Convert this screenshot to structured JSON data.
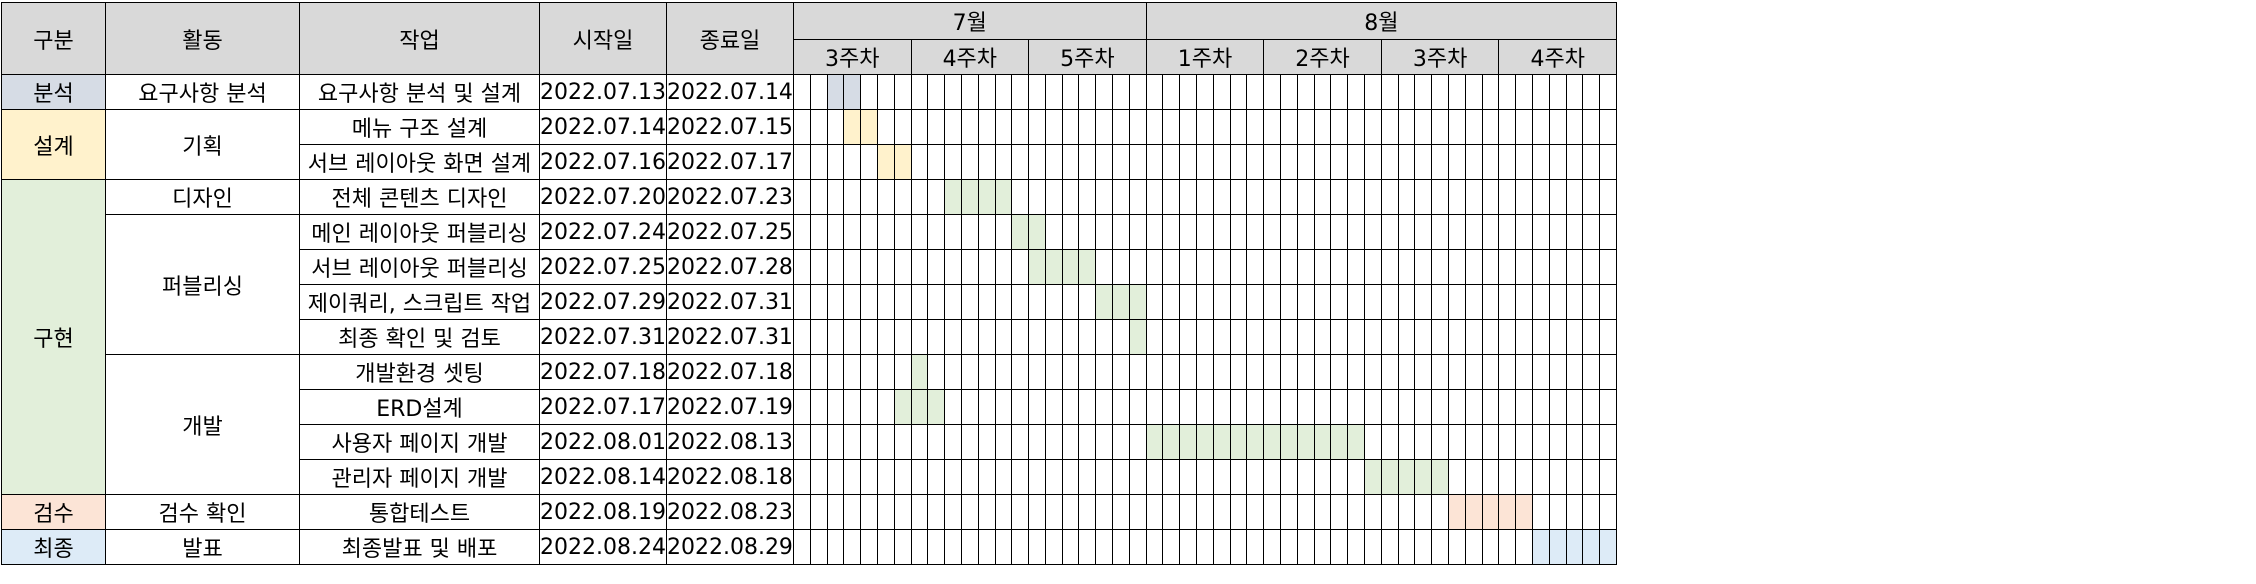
{
  "headers": {
    "category": "구분",
    "activity": "활동",
    "task": "작업",
    "start": "시작일",
    "end": "종료일"
  },
  "months": [
    {
      "label": "7월",
      "weeks": [
        "3주차",
        "4주차",
        "5주차"
      ],
      "days": 21
    },
    {
      "label": "8월",
      "weeks": [
        "1주차",
        "2주차",
        "3주차",
        "4주차"
      ],
      "days": 28
    }
  ],
  "timeline_start": "2022-07-11",
  "colors": {
    "header_bg": "#d9d9d9",
    "분석": "#d6dce5",
    "설계": "#fff2cc",
    "구현": "#e2efda",
    "검수": "#fce4d6",
    "최종": "#ddebf7"
  },
  "rows": [
    {
      "category": "분석",
      "cat_rows": 1,
      "activity": "요구사항 분석",
      "act_rows": 1,
      "task": "요구사항 분석 및 설계",
      "start": "2022.07.13",
      "end": "2022.07.14"
    },
    {
      "category": "설계",
      "cat_rows": 2,
      "activity": "기획",
      "act_rows": 2,
      "task": "메뉴 구조 설계",
      "start": "2022.07.14",
      "end": "2022.07.15"
    },
    {
      "category": null,
      "activity": null,
      "task": "서브 레이아웃 화면 설계",
      "start": "2022.07.16",
      "end": "2022.07.17"
    },
    {
      "category": "구현",
      "cat_rows": 9,
      "activity": "디자인",
      "act_rows": 1,
      "task": "전체 콘텐츠 디자인",
      "start": "2022.07.20",
      "end": "2022.07.23"
    },
    {
      "category": null,
      "activity": "퍼블리싱",
      "act_rows": 4,
      "task": "메인 레이아웃 퍼블리싱",
      "start": "2022.07.24",
      "end": "2022.07.25"
    },
    {
      "category": null,
      "activity": null,
      "task": "서브 레이아웃 퍼블리싱",
      "start": "2022.07.25",
      "end": "2022.07.28"
    },
    {
      "category": null,
      "activity": null,
      "task": "제이쿼리, 스크립트 작업",
      "start": "2022.07.29",
      "end": "2022.07.31"
    },
    {
      "category": null,
      "activity": null,
      "task": "최종 확인 및 검토",
      "start": "2022.07.31",
      "end": "2022.07.31"
    },
    {
      "category": null,
      "activity": "개발",
      "act_rows": 4,
      "task": "개발환경 셋팅",
      "start": "2022.07.18",
      "end": "2022.07.18"
    },
    {
      "category": null,
      "activity": null,
      "task": "ERD설계",
      "start": "2022.07.17",
      "end": "2022.07.19"
    },
    {
      "category": null,
      "activity": null,
      "task": "사용자 페이지 개발",
      "start": "2022.08.01",
      "end": "2022.08.13"
    },
    {
      "category": null,
      "activity": null,
      "task": "관리자 페이지 개발",
      "start": "2022.08.14",
      "end": "2022.08.18"
    },
    {
      "category": "검수",
      "cat_rows": 1,
      "activity": "검수 확인",
      "act_rows": 1,
      "task": "통합테스트",
      "start": "2022.08.19",
      "end": "2022.08.23"
    },
    {
      "category": "최종",
      "cat_rows": 1,
      "activity": "발표",
      "act_rows": 1,
      "task": "최종발표 및 배포",
      "start": "2022.08.24",
      "end": "2022.08.29"
    }
  ]
}
